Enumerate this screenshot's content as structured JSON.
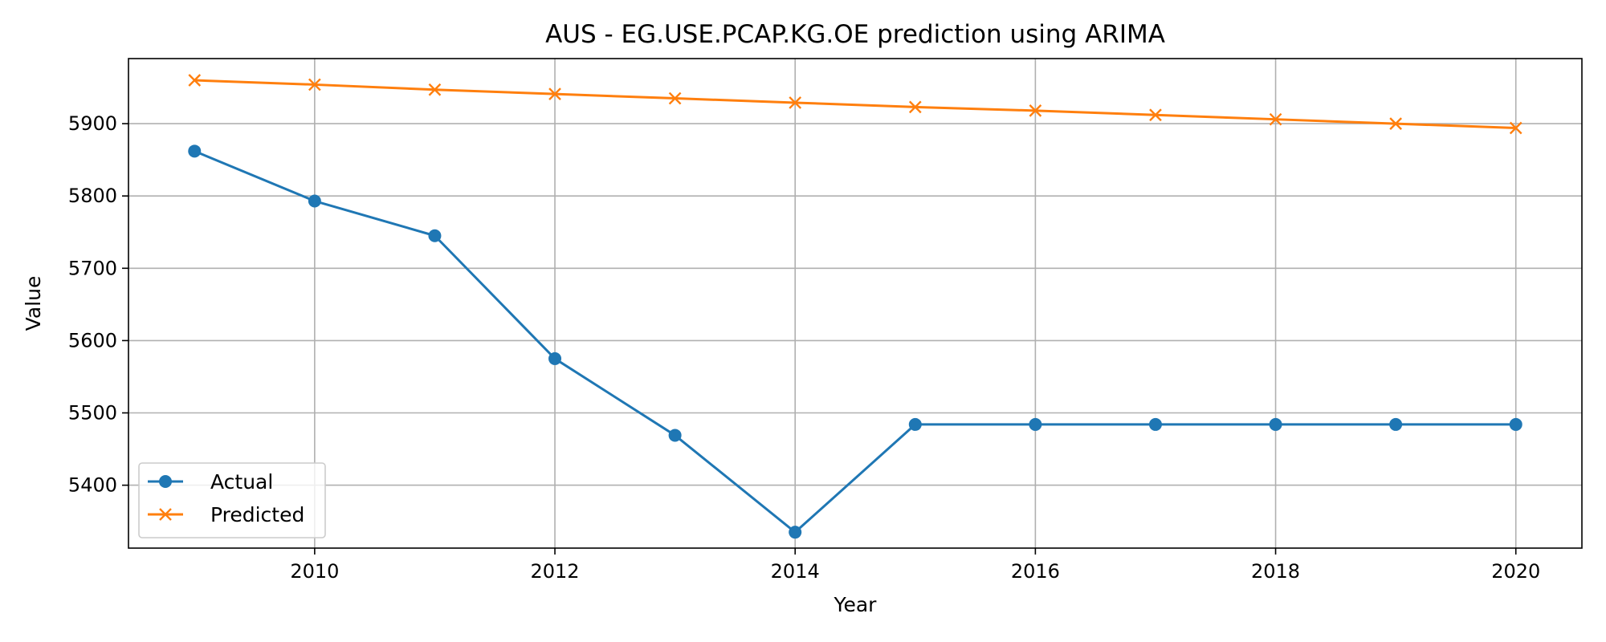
{
  "chart_data": {
    "type": "line",
    "title": "AUS - EG.USE.PCAP.KG.OE prediction using ARIMA",
    "xlabel": "Year",
    "ylabel": "Value",
    "x": [
      2009,
      2010,
      2011,
      2012,
      2013,
      2014,
      2015,
      2016,
      2017,
      2018,
      2019,
      2020
    ],
    "xlim": [
      2008.45,
      2020.55
    ],
    "ylim": [
      5313,
      5990
    ],
    "xticks": [
      2010,
      2012,
      2014,
      2016,
      2018,
      2020
    ],
    "yticks": [
      5400,
      5500,
      5600,
      5700,
      5800,
      5900
    ],
    "grid": true,
    "legend_position": "lower-left",
    "series": [
      {
        "name": "Actual",
        "color": "#1f77b4",
        "marker": "circle",
        "values": [
          5862,
          5793,
          5745,
          5575,
          5469,
          5335,
          5484,
          5484,
          5484,
          5484,
          5484,
          5484
        ]
      },
      {
        "name": "Predicted",
        "color": "#ff7f0e",
        "marker": "x",
        "values": [
          5960,
          5954,
          5947,
          5941,
          5935,
          5929,
          5923,
          5918,
          5912,
          5906,
          5900,
          5894
        ]
      }
    ]
  }
}
